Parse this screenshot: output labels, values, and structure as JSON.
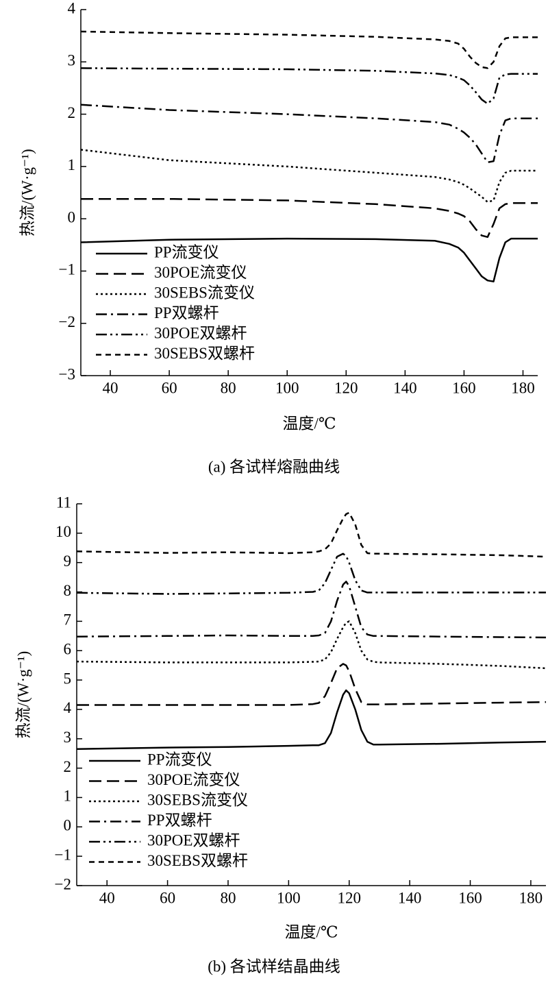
{
  "chart_data": [
    {
      "type": "line",
      "caption": "(a) 各试样熔融曲线",
      "xlabel": "温度/℃",
      "ylabel": "热流/(W·g⁻¹)",
      "xlim": [
        30,
        185
      ],
      "ylim": [
        -3,
        4
      ],
      "xticks": [
        40,
        60,
        80,
        100,
        120,
        140,
        160,
        180
      ],
      "yticks": [
        {
          "value": -3,
          "label": "−3"
        },
        {
          "value": -2,
          "label": "−2"
        },
        {
          "value": -1,
          "label": "−1"
        },
        0,
        1,
        2,
        3,
        4
      ],
      "legend": "lower left",
      "x": [
        30,
        60,
        100,
        130,
        150,
        155,
        158,
        160,
        162,
        164,
        166,
        168,
        170,
        172,
        174,
        176,
        180,
        185
      ],
      "series": [
        {
          "name": "PP流变仪",
          "color": "#000000",
          "dash": "solid",
          "values": [
            -0.45,
            -0.4,
            -0.38,
            -0.39,
            -0.42,
            -0.48,
            -0.55,
            -0.65,
            -0.8,
            -0.95,
            -1.1,
            -1.18,
            -1.2,
            -0.75,
            -0.45,
            -0.38,
            -0.38,
            -0.38
          ]
        },
        {
          "name": "30POE流变仪",
          "color": "#000000",
          "dash": "dashed",
          "values": [
            0.38,
            0.38,
            0.35,
            0.28,
            0.2,
            0.15,
            0.1,
            0.05,
            -0.05,
            -0.2,
            -0.32,
            -0.35,
            -0.1,
            0.2,
            0.28,
            0.3,
            0.3,
            0.3
          ]
        },
        {
          "name": "30SEBS流变仪",
          "color": "#000000",
          "dash": "dotted",
          "values": [
            1.32,
            1.12,
            1.0,
            0.88,
            0.8,
            0.75,
            0.7,
            0.65,
            0.58,
            0.5,
            0.42,
            0.32,
            0.35,
            0.7,
            0.88,
            0.92,
            0.92,
            0.92
          ]
        },
        {
          "name": "PP双螺杆",
          "color": "#000000",
          "dash": "dash-dot",
          "values": [
            2.18,
            2.08,
            2.0,
            1.92,
            1.85,
            1.8,
            1.72,
            1.65,
            1.55,
            1.42,
            1.25,
            1.08,
            1.1,
            1.6,
            1.88,
            1.92,
            1.92,
            1.92
          ]
        },
        {
          "name": "30POE双螺杆",
          "color": "#000000",
          "dash": "dash-dot-dot",
          "values": [
            2.88,
            2.87,
            2.86,
            2.83,
            2.78,
            2.75,
            2.7,
            2.65,
            2.55,
            2.42,
            2.28,
            2.2,
            2.3,
            2.7,
            2.76,
            2.77,
            2.77,
            2.77
          ]
        },
        {
          "name": "30SEBS双螺杆",
          "color": "#000000",
          "dash": "short-dash",
          "values": [
            3.58,
            3.55,
            3.52,
            3.48,
            3.43,
            3.4,
            3.35,
            3.25,
            3.1,
            2.98,
            2.9,
            2.88,
            3.0,
            3.3,
            3.45,
            3.47,
            3.47,
            3.47
          ]
        }
      ]
    },
    {
      "type": "line",
      "caption": "(b) 各试样结晶曲线",
      "xlabel": "温度/℃",
      "ylabel": "热流/(W·g⁻¹)",
      "xlim": [
        30,
        185
      ],
      "ylim": [
        -2,
        11
      ],
      "xticks": [
        40,
        60,
        80,
        100,
        120,
        140,
        160,
        180
      ],
      "yticks": [
        {
          "value": -2,
          "label": "−2"
        },
        {
          "value": -1,
          "label": "−1"
        },
        0,
        1,
        2,
        3,
        4,
        5,
        6,
        7,
        8,
        9,
        10,
        11
      ],
      "legend": "lower left",
      "x": [
        30,
        60,
        80,
        100,
        108,
        110,
        112,
        114,
        116,
        118,
        119,
        120,
        122,
        124,
        126,
        128,
        130,
        150,
        170,
        185
      ],
      "series": [
        {
          "name": "PP流变仪",
          "color": "#000000",
          "dash": "solid",
          "values": [
            2.65,
            2.7,
            2.72,
            2.76,
            2.78,
            2.78,
            2.85,
            3.2,
            3.9,
            4.5,
            4.65,
            4.55,
            4.0,
            3.3,
            2.9,
            2.8,
            2.8,
            2.83,
            2.87,
            2.9
          ]
        },
        {
          "name": "30POE流变仪",
          "color": "#000000",
          "dash": "dashed",
          "values": [
            4.15,
            4.15,
            4.15,
            4.15,
            4.18,
            4.22,
            4.45,
            4.9,
            5.4,
            5.55,
            5.5,
            5.3,
            4.7,
            4.25,
            4.17,
            4.17,
            4.17,
            4.2,
            4.23,
            4.25
          ]
        },
        {
          "name": "30SEBS流变仪",
          "color": "#000000",
          "dash": "dotted",
          "values": [
            5.63,
            5.6,
            5.6,
            5.6,
            5.62,
            5.63,
            5.7,
            5.95,
            6.4,
            6.8,
            6.95,
            7.0,
            6.6,
            6.0,
            5.7,
            5.62,
            5.6,
            5.55,
            5.48,
            5.4
          ]
        },
        {
          "name": "PP双螺杆",
          "color": "#000000",
          "dash": "dash-dot",
          "values": [
            6.48,
            6.5,
            6.52,
            6.5,
            6.5,
            6.52,
            6.6,
            7.0,
            7.7,
            8.25,
            8.35,
            8.2,
            7.5,
            6.8,
            6.55,
            6.5,
            6.5,
            6.48,
            6.46,
            6.45
          ]
        },
        {
          "name": "30POE双螺杆",
          "color": "#000000",
          "dash": "dash-dot-dot",
          "values": [
            7.97,
            7.93,
            7.95,
            7.97,
            8.0,
            8.05,
            8.3,
            8.75,
            9.2,
            9.3,
            9.22,
            9.0,
            8.4,
            8.05,
            7.98,
            7.98,
            7.98,
            7.98,
            7.98,
            7.98
          ]
        },
        {
          "name": "30SEBS双螺杆",
          "color": "#000000",
          "dash": "short-dash",
          "values": [
            9.38,
            9.33,
            9.35,
            9.32,
            9.35,
            9.38,
            9.45,
            9.65,
            10.1,
            10.5,
            10.65,
            10.7,
            10.3,
            9.6,
            9.32,
            9.3,
            9.3,
            9.28,
            9.25,
            9.2
          ]
        }
      ]
    }
  ]
}
